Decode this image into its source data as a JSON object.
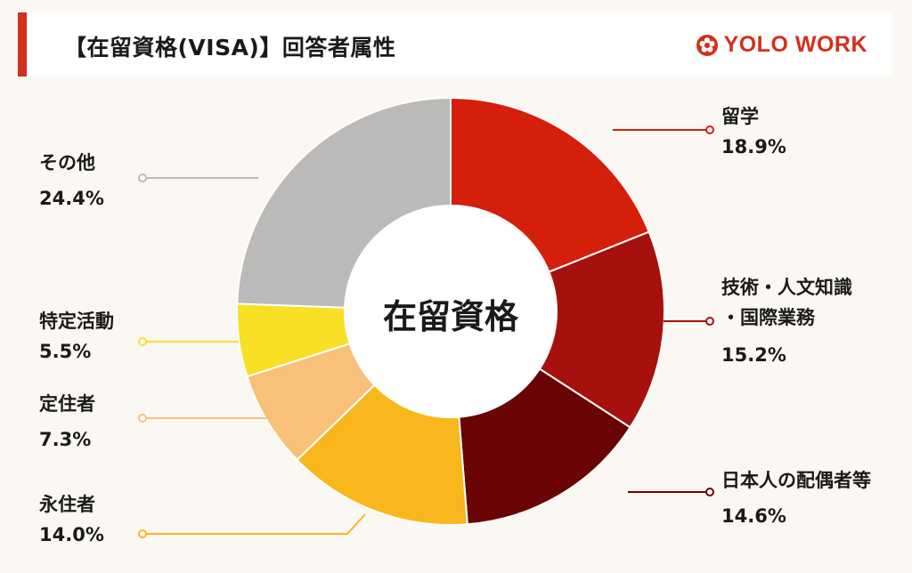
{
  "header": {
    "title": "【在留資格(VISA)】回答者属性",
    "logo_text": "YOLO WORK",
    "logo_icon": "flower-logo-icon",
    "accent_color": "#d32f1e"
  },
  "chart_data": {
    "type": "pie",
    "center_label": "在留資格",
    "slices": [
      {
        "label": "留学",
        "value": 18.9,
        "value_text": "18.9%",
        "color": "#d41f0b"
      },
      {
        "label": "技術・人文知識・国際業務",
        "label_lines": [
          "技術・人文知識",
          "・国際業務"
        ],
        "value": 15.2,
        "value_text": "15.2%",
        "color": "#a6110e"
      },
      {
        "label": "日本人の配偶者等",
        "value": 14.6,
        "value_text": "14.6%",
        "color": "#6b0404"
      },
      {
        "label": "永住者",
        "value": 14.0,
        "value_text": "14.0%",
        "color": "#f8b71c"
      },
      {
        "label": "定住者",
        "value": 7.3,
        "value_text": "7.3%",
        "color": "#f9c07a"
      },
      {
        "label": "特定活動",
        "value": 5.5,
        "value_text": "5.5%",
        "color": "#f9e027"
      },
      {
        "label": "その他",
        "value": 24.4,
        "value_text": "24.4%",
        "color": "#bcbab8"
      }
    ]
  }
}
